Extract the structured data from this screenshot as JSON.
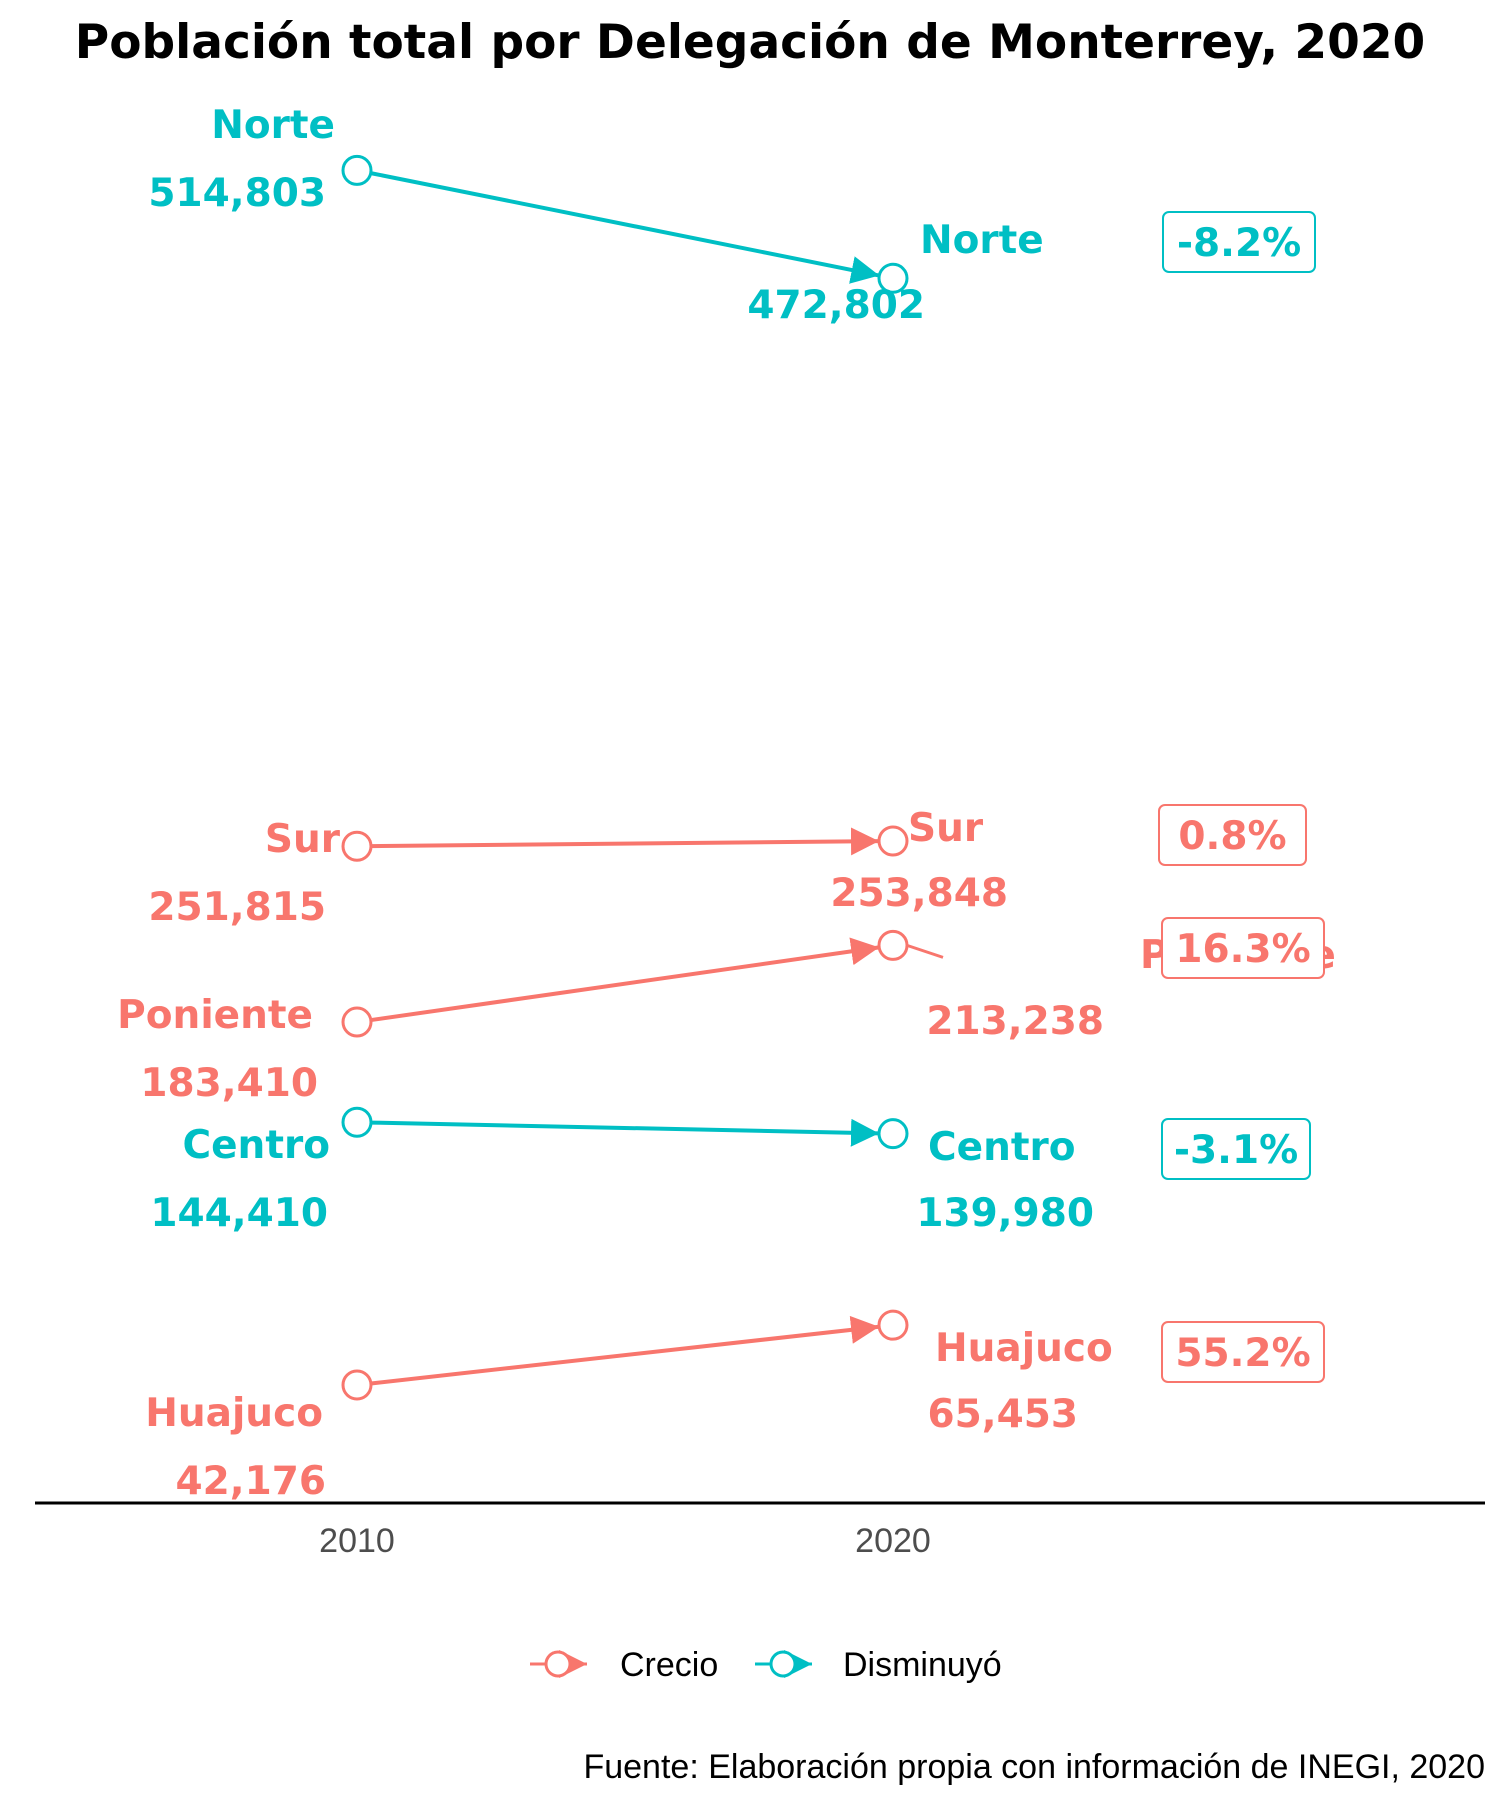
{
  "chart_data": {
    "type": "dumbbell",
    "title": "Población total por Delegación de Monterrey, 2020",
    "x_categories": [
      "2010",
      "2020"
    ],
    "series": [
      {
        "name": "Norte",
        "values": [
          514803,
          472802
        ],
        "labels": [
          "514,803",
          "472,802"
        ],
        "change": "-8.2%",
        "status": "Disminuyó"
      },
      {
        "name": "Sur",
        "values": [
          251815,
          253848
        ],
        "labels": [
          "251,815",
          "253,848"
        ],
        "change": "0.8%",
        "status": "Crecio"
      },
      {
        "name": "Poniente",
        "values": [
          183410,
          213238
        ],
        "labels": [
          "183,410",
          "213,238"
        ],
        "change": "16.3%",
        "status": "Crecio"
      },
      {
        "name": "Centro",
        "values": [
          144410,
          139980
        ],
        "labels": [
          "144,410",
          "139,980"
        ],
        "change": "-3.1%",
        "status": "Disminuyó"
      },
      {
        "name": "Huajuco",
        "values": [
          42176,
          65453
        ],
        "labels": [
          "42,176",
          "65,453"
        ],
        "change": "55.2%",
        "status": "Crecio"
      }
    ],
    "legend": {
      "position": "bottom",
      "items": [
        {
          "label": "Crecio",
          "color": "#f8766d"
        },
        {
          "label": "Disminuyó",
          "color": "#00bfc4"
        }
      ]
    },
    "ylim": [
      20000,
      520000
    ],
    "grid": false,
    "caption": "Fuente: Elaboración propia con información de INEGI, 2020"
  },
  "colors": {
    "Crecio": "#f8766d",
    "Disminuyó": "#00bfc4"
  }
}
